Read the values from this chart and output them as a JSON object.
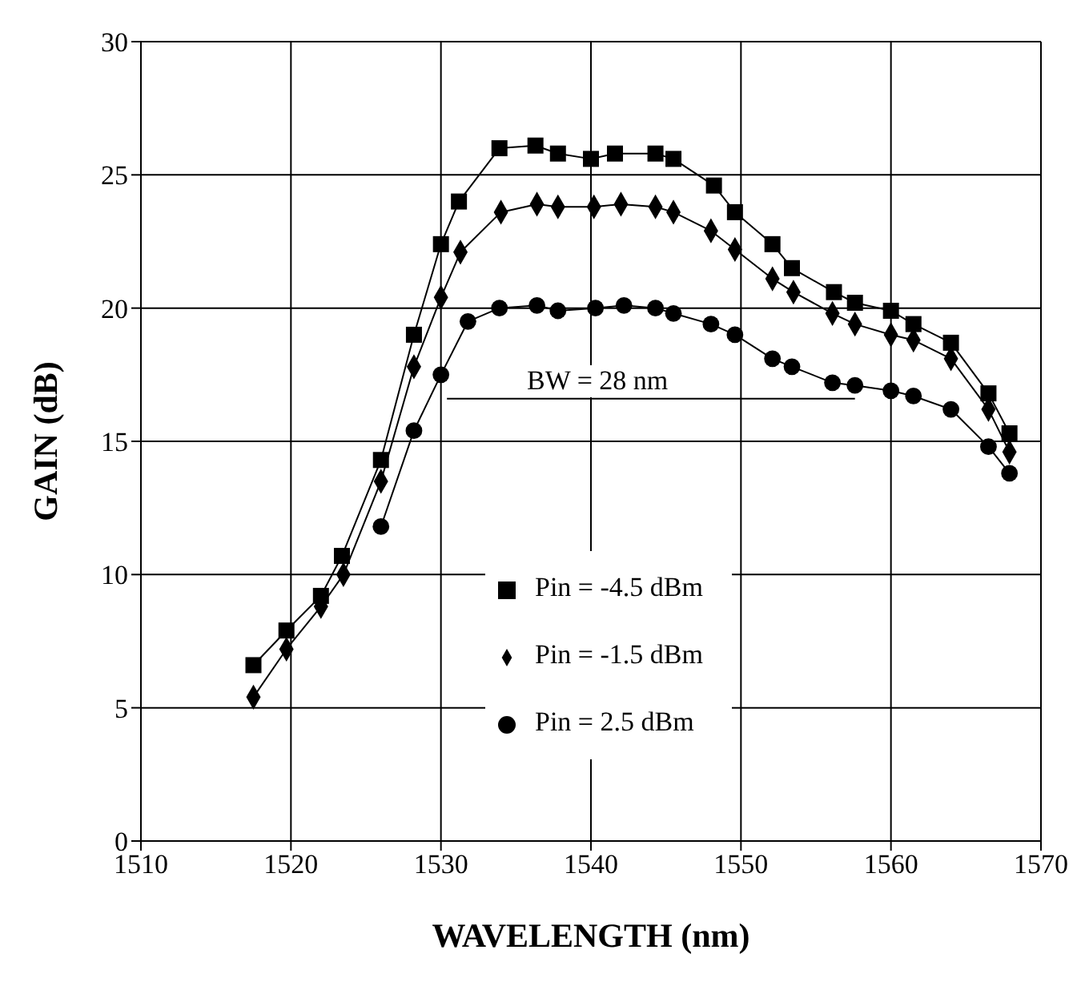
{
  "chart_data": {
    "type": "line",
    "xlabel": "WAVELENGTH (nm)",
    "ylabel": "GAIN (dB)",
    "xlim": [
      1510,
      1570
    ],
    "xticks": [
      1510,
      1520,
      1530,
      1540,
      1550,
      1560,
      1570
    ],
    "ylim": [
      0,
      30
    ],
    "yticks": [
      0,
      5,
      10,
      15,
      20,
      25,
      30
    ],
    "grid": true,
    "legend": "bottom",
    "line_style": "solid",
    "annotations": [
      "BW = 28 nm"
    ],
    "series": [
      {
        "name": "Pin = -4.5 dBm",
        "color": "#000000",
        "marker": "square",
        "x": [
          1517.5,
          1519.7,
          1522,
          1523.4,
          1526,
          1528.2,
          1530,
          1531.2,
          1533.9,
          1536.3,
          1537.8,
          1540,
          1541.6,
          1544.3,
          1545.5,
          1548.2,
          1549.6,
          1552.1,
          1553.4,
          1556.2,
          1557.6,
          1560,
          1561.5,
          1564,
          1566.5,
          1567.9
        ],
        "values": [
          6.6,
          7.9,
          9.2,
          10.7,
          14.3,
          19.0,
          22.4,
          24.0,
          26.0,
          26.1,
          25.8,
          25.6,
          25.8,
          25.8,
          25.6,
          24.6,
          23.6,
          22.4,
          21.5,
          20.6,
          20.2,
          19.9,
          19.4,
          18.7,
          16.8,
          15.3
        ]
      },
      {
        "name": "Pin = -1.5 dBm",
        "color": "#000000",
        "marker": "diamond",
        "x": [
          1517.5,
          1519.7,
          1522,
          1523.5,
          1526,
          1528.2,
          1530,
          1531.3,
          1534,
          1536.4,
          1537.8,
          1540.2,
          1542,
          1544.3,
          1545.5,
          1548,
          1549.6,
          1552.1,
          1553.5,
          1556.1,
          1557.6,
          1560,
          1561.5,
          1564,
          1566.5,
          1567.9
        ],
        "values": [
          5.4,
          7.2,
          8.8,
          10.0,
          13.5,
          17.8,
          20.4,
          22.1,
          23.6,
          23.9,
          23.8,
          23.8,
          23.9,
          23.8,
          23.6,
          22.9,
          22.2,
          21.1,
          20.6,
          19.8,
          19.4,
          19.0,
          18.8,
          18.1,
          16.2,
          14.6
        ]
      },
      {
        "type": "line",
        "color": "#000000",
        "marker": "none",
        "x": [
          1530.4,
          1557.6
        ],
        "values": [
          16.6,
          16.6
        ]
      },
      {
        "name": "Pin = 2.5 dBm",
        "color": "#000000",
        "marker": "circle",
        "x": [
          1526,
          1528.2,
          1530,
          1531.8,
          1533.9,
          1536.4,
          1537.8,
          1540.3,
          1542.2,
          1544.3,
          1545.5,
          1548,
          1549.6,
          1552.1,
          1553.4,
          1556.1,
          1557.6,
          1560,
          1561.5,
          1564,
          1566.5,
          1567.9
        ],
        "values": [
          11.8,
          15.4,
          17.5,
          19.5,
          20.0,
          20.1,
          19.9,
          20.0,
          20.1,
          20.0,
          19.8,
          19.4,
          19.0,
          18.1,
          17.8,
          17.2,
          17.1,
          16.9,
          16.7,
          16.2,
          14.8,
          13.8
        ]
      }
    ]
  }
}
